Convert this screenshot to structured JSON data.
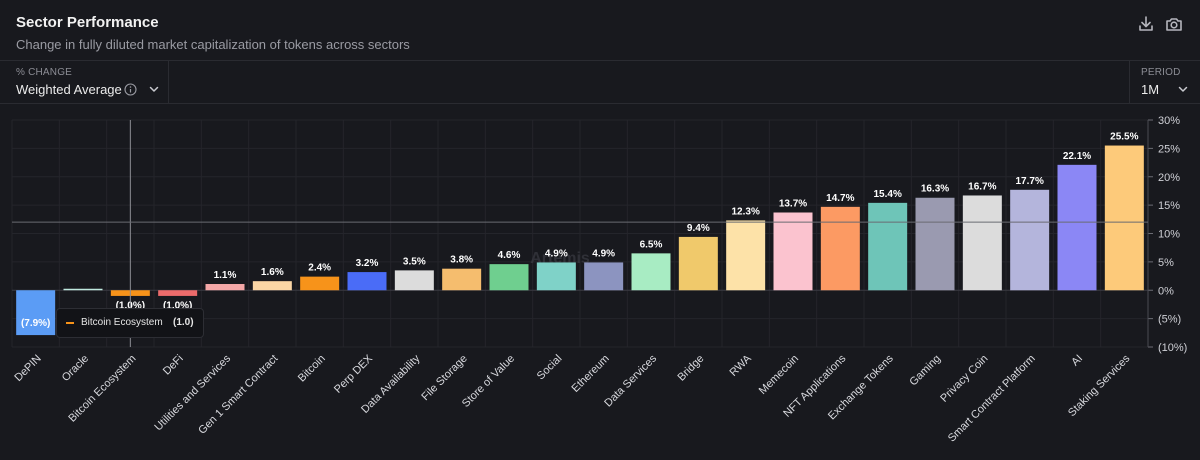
{
  "header": {
    "title": "Sector Performance",
    "subtitle": "Change in fully diluted market capitalization of tokens across sectors",
    "download_icon": "download-icon",
    "camera_icon": "camera-icon"
  },
  "controls": {
    "change_label": "% CHANGE",
    "change_value": "Weighted Average",
    "period_label": "PERIOD",
    "period_value": "1M"
  },
  "tooltip": {
    "name": "Bitcoin Ecosystem",
    "value": "(1.0)",
    "color": "#f7931a"
  },
  "watermark": "Artemis",
  "chart_data": {
    "type": "bar",
    "title": "Sector Performance",
    "ylabel": "% CHANGE",
    "ylim": [
      -10,
      30
    ],
    "yticks": [
      "30%",
      "25%",
      "20%",
      "15%",
      "10%",
      "5%",
      "0%",
      "(5%)",
      "(10%)"
    ],
    "ytick_values": [
      30,
      25,
      20,
      15,
      10,
      5,
      0,
      -5,
      -10
    ],
    "categories": [
      "DePIN",
      "Oracle",
      "Bitcoin Ecosystem",
      "DeFi",
      "Utilities and Services",
      "Gen 1 Smart Contract",
      "Bitcoin",
      "Perp DEX",
      "Data Availability",
      "File Storage",
      "Store of Value",
      "Social",
      "Ethereum",
      "Data Services",
      "Bridge",
      "RWA",
      "Memecoin",
      "NFT Applications",
      "Exchange Tokens",
      "Gaming",
      "Privacy Coin",
      "Smart Contract Platform",
      "AI",
      "Staking Services"
    ],
    "values": [
      -7.9,
      0.0,
      -1.0,
      -1.0,
      1.1,
      1.6,
      2.4,
      3.2,
      3.5,
      3.8,
      4.6,
      4.9,
      4.9,
      6.5,
      9.4,
      12.3,
      13.7,
      14.7,
      15.4,
      16.3,
      16.7,
      17.7,
      22.1,
      25.5
    ],
    "labels": [
      "(7.9%)",
      "",
      "(1.0%)",
      "(1.0%)",
      "1.1%",
      "1.6%",
      "2.4%",
      "3.2%",
      "3.5%",
      "3.8%",
      "4.6%",
      "4.9%",
      "4.9%",
      "6.5%",
      "9.4%",
      "12.3%",
      "13.7%",
      "14.7%",
      "15.4%",
      "16.3%",
      "16.7%",
      "17.7%",
      "22.1%",
      "25.5%"
    ],
    "colors": [
      "#5b9cf5",
      "#bfe9df",
      "#f7931a",
      "#ec6b6b",
      "#f4a7a7",
      "#fad6a5",
      "#f7931a",
      "#4a6cf7",
      "#dcdcdc",
      "#f5bd6e",
      "#6fcf8f",
      "#7fd2c8",
      "#8c94c0",
      "#a8ecc3",
      "#f0c96b",
      "#fde2a8",
      "#fbc3cf",
      "#fc9a63",
      "#6ec5b8",
      "#9a9ab0",
      "#dcdcdc",
      "#b4b5dc",
      "#8b87f5",
      "#fdca7a"
    ],
    "grid": true,
    "crosshair_category": "Bitcoin Ecosystem",
    "crosshair_y": 12
  }
}
